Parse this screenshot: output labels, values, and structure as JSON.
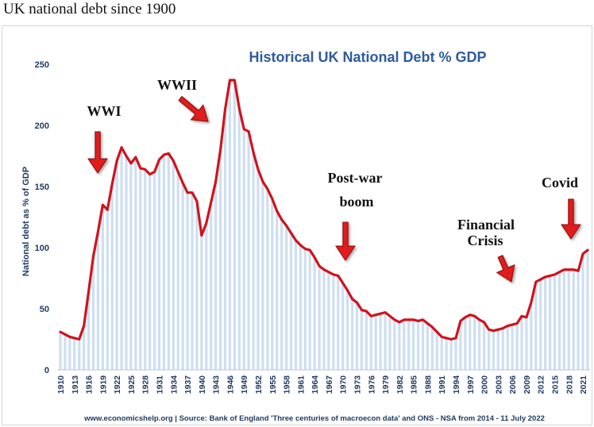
{
  "page_title": "UK national debt since 1900",
  "colors": {
    "line": "#d0131b",
    "bars": "#c9dbf0",
    "axis_text": "#1f3b62",
    "title": "#2e5c9b",
    "arrow": "#e01b1b"
  },
  "chart_data": {
    "type": "area",
    "title": "Historical UK National Debt % GDP",
    "ylabel": "National debt as % of GDP",
    "xlabel": "",
    "ylim": [
      0,
      250
    ],
    "yticks": [
      0,
      50,
      100,
      150,
      200,
      250
    ],
    "xticks": [
      "1910",
      "1913",
      "1916",
      "1919",
      "1922",
      "1925",
      "1928",
      "1931",
      "1934",
      "1937",
      "1940",
      "1943",
      "1946",
      "1949",
      "1952",
      "1955",
      "1958",
      "1961",
      "1964",
      "1967",
      "1970",
      "1973",
      "1976",
      "1979",
      "1982",
      "1985",
      "1988",
      "1991",
      "1994",
      "1997",
      "2000",
      "2003",
      "2006",
      "2009",
      "2012",
      "2015",
      "2018",
      "2021"
    ],
    "series": [
      {
        "name": "National debt as % of GDP",
        "x": [
          1910,
          1911,
          1912,
          1913,
          1914,
          1915,
          1916,
          1917,
          1918,
          1919,
          1920,
          1921,
          1922,
          1923,
          1924,
          1925,
          1926,
          1927,
          1928,
          1929,
          1930,
          1931,
          1932,
          1933,
          1934,
          1935,
          1936,
          1937,
          1938,
          1939,
          1940,
          1941,
          1942,
          1943,
          1944,
          1945,
          1946,
          1947,
          1948,
          1949,
          1950,
          1951,
          1952,
          1953,
          1954,
          1955,
          1956,
          1957,
          1958,
          1959,
          1960,
          1961,
          1962,
          1963,
          1964,
          1965,
          1966,
          1967,
          1968,
          1969,
          1970,
          1971,
          1972,
          1973,
          1974,
          1975,
          1976,
          1977,
          1978,
          1979,
          1980,
          1981,
          1982,
          1983,
          1984,
          1985,
          1986,
          1987,
          1988,
          1989,
          1990,
          1991,
          1992,
          1993,
          1994,
          1995,
          1996,
          1997,
          1998,
          1999,
          2000,
          2001,
          2002,
          2003,
          2004,
          2005,
          2006,
          2007,
          2008,
          2009,
          2010,
          2011,
          2012,
          2013,
          2014,
          2015,
          2016,
          2017,
          2018,
          2019,
          2020,
          2021,
          2022
        ],
        "values": [
          31,
          29,
          27,
          26,
          25,
          36,
          64,
          93,
          113,
          135,
          131,
          152,
          171,
          182,
          175,
          169,
          174,
          165,
          164,
          160,
          162,
          172,
          176,
          177,
          171,
          162,
          153,
          145,
          145,
          138,
          110,
          120,
          137,
          154,
          180,
          213,
          237,
          237,
          214,
          197,
          195,
          178,
          164,
          154,
          148,
          140,
          130,
          123,
          118,
          112,
          106,
          102,
          99,
          98,
          92,
          85,
          82,
          80,
          78,
          77,
          71,
          65,
          58,
          55,
          49,
          48,
          44,
          45,
          46,
          47,
          44,
          41,
          39,
          41,
          41,
          41,
          40,
          41,
          38,
          35,
          31,
          27,
          26,
          25,
          26,
          40,
          43,
          45,
          44,
          41,
          39,
          33,
          32,
          33,
          34,
          36,
          37,
          38,
          44,
          43,
          55,
          72,
          74,
          76,
          77,
          78,
          80,
          82,
          82,
          82,
          81,
          95,
          98
        ]
      }
    ],
    "annotations": [
      {
        "text": "WWI"
      },
      {
        "text": "WWII"
      },
      {
        "text": "Post-war boom",
        "lines": [
          "Post-war",
          "boom"
        ]
      },
      {
        "text": "Financial Crisis",
        "lines": [
          "Financial",
          "Crisis"
        ]
      },
      {
        "text": "Covid"
      }
    ],
    "source": "www.economicshelp.org | Source: Bank of England 'Three centuries of macroecon data' and ONS - NSA from 2014 - 11 July 2022"
  }
}
